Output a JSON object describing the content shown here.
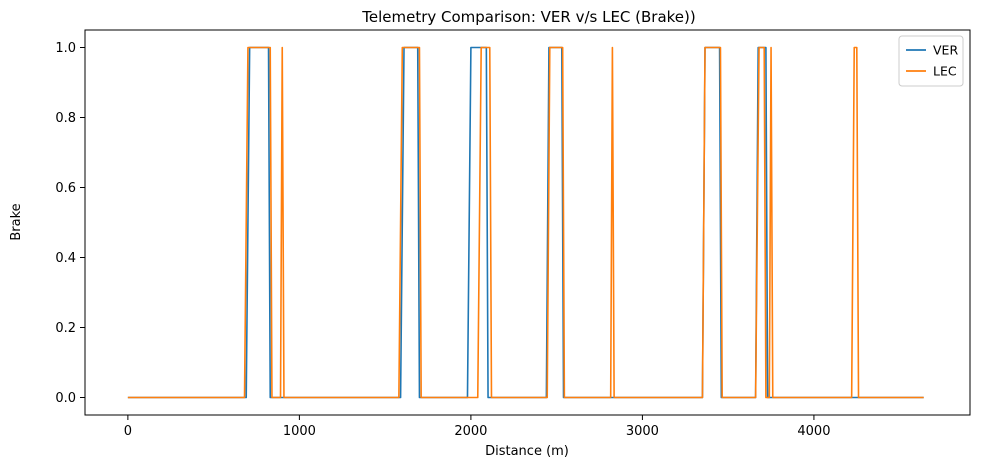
{
  "chart_data": {
    "type": "line",
    "title": "Telemetry Comparison: VER v/s LEC (Brake))",
    "xlabel": "Distance (m)",
    "ylabel": "Brake",
    "xlim": [
      -250,
      4910
    ],
    "ylim": [
      -0.05,
      1.05
    ],
    "xticks": [
      0,
      1000,
      2000,
      3000,
      4000
    ],
    "yticks": [
      0.0,
      0.2,
      0.4,
      0.6,
      0.8,
      1.0
    ],
    "xtick_labels": [
      "0",
      "1000",
      "2000",
      "3000",
      "4000"
    ],
    "ytick_labels": [
      "0.0",
      "0.2",
      "0.4",
      "0.6",
      "0.8",
      "1.0"
    ],
    "grid": false,
    "legend_position": "top-right",
    "series": [
      {
        "name": "VER",
        "color": "#1f77b4",
        "x": [
          0,
          690,
          710,
          820,
          830,
          4640
        ],
        "y": [
          0,
          0,
          1,
          1,
          0,
          0
        ],
        "x_full": [
          0,
          690,
          710,
          820,
          830,
          1590,
          1610,
          1690,
          1700,
          1980,
          2000,
          2090,
          2100,
          2440,
          2455,
          2530,
          2540,
          3350,
          3365,
          3450,
          3460,
          3660,
          3675,
          3720,
          3730,
          4640
        ],
        "y_full": [
          0,
          0,
          1,
          1,
          0,
          0,
          1,
          1,
          0,
          0,
          1,
          1,
          0,
          0,
          1,
          1,
          0,
          0,
          1,
          1,
          0,
          0,
          1,
          1,
          0,
          0
        ]
      },
      {
        "name": "LEC",
        "color": "#ff7f0e",
        "x_full": [
          0,
          680,
          700,
          830,
          840,
          890,
          900,
          910,
          1580,
          1600,
          1700,
          1710,
          2040,
          2060,
          2110,
          2120,
          2445,
          2460,
          2535,
          2545,
          2815,
          2825,
          2835,
          3350,
          3365,
          3455,
          3465,
          3660,
          3680,
          3710,
          3720,
          3740,
          3750,
          3760,
          4220,
          4235,
          4250,
          4260,
          4640
        ],
        "y_full": [
          0,
          0,
          1,
          1,
          0,
          0,
          1,
          0,
          0,
          1,
          1,
          0,
          0,
          1,
          1,
          0,
          0,
          1,
          1,
          0,
          0,
          1,
          0,
          0,
          1,
          1,
          0,
          0,
          1,
          1,
          0,
          0,
          1,
          0,
          0,
          1,
          1,
          0,
          0
        ]
      }
    ]
  }
}
